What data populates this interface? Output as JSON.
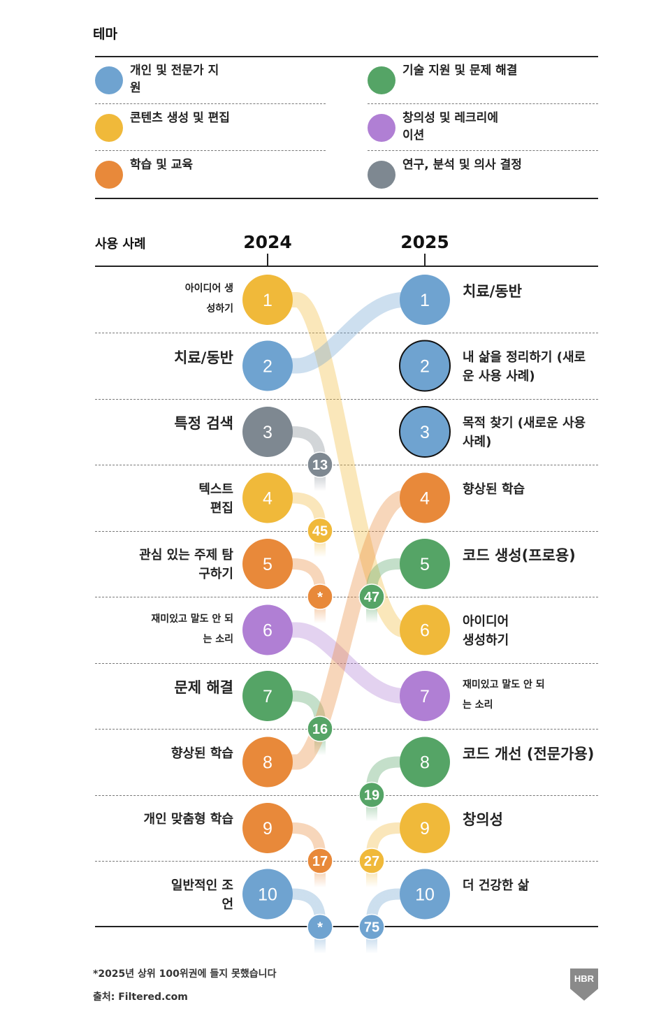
{
  "legend": {
    "title": "테마",
    "themes": [
      {
        "key": "personal",
        "label": "개인 및 전문가 지원",
        "color": "#6fa3d0"
      },
      {
        "key": "tech",
        "label": "기술 지원 및 문제 해결",
        "color": "#55a466"
      },
      {
        "key": "content",
        "label": "콘텐츠 생성 및 편집",
        "color": "#f0b93a"
      },
      {
        "key": "creative",
        "label": "창의성 및 레크리에이션",
        "color": "#b07fd4"
      },
      {
        "key": "learning",
        "label": "학습 및 교육",
        "color": "#e8893a"
      },
      {
        "key": "research",
        "label": "연구, 분석 및 의사 결정",
        "color": "#7e8891"
      }
    ]
  },
  "chart_data": {
    "type": "bump",
    "row_header": "사용 사례",
    "years": [
      "2024",
      "2025"
    ],
    "left": [
      {
        "rank": "1",
        "label": "아이디어 생성하기",
        "theme": "content",
        "rank_2025": "6"
      },
      {
        "rank": "2",
        "label": "치료/동반",
        "theme": "personal",
        "rank_2025": "1"
      },
      {
        "rank": "3",
        "label": "특정 검색",
        "theme": "research",
        "rank_2025": "13"
      },
      {
        "rank": "4",
        "label": "텍스트 편집",
        "theme": "content",
        "rank_2025": "45"
      },
      {
        "rank": "5",
        "label": "관심 있는 주제 탐구하기",
        "theme": "learning",
        "rank_2025": "*"
      },
      {
        "rank": "6",
        "label": "재미있고 말도 안 되는 소리",
        "theme": "creative",
        "rank_2025": "7"
      },
      {
        "rank": "7",
        "label": "문제 해결",
        "theme": "tech",
        "rank_2025": "16"
      },
      {
        "rank": "8",
        "label": "향상된 학습",
        "theme": "learning",
        "rank_2025": "4"
      },
      {
        "rank": "9",
        "label": "개인 맞춤형 학습",
        "theme": "learning",
        "rank_2025": "17"
      },
      {
        "rank": "10",
        "label": "일반적인 조언",
        "theme": "personal",
        "rank_2025": "*"
      }
    ],
    "right": [
      {
        "rank": "1",
        "label": "치료/동반",
        "theme": "personal",
        "rank_2024": "2"
      },
      {
        "rank": "2",
        "label": "내 삶을 정리하기 (새로운 사용 사례)",
        "theme": "personal",
        "rank_2024": "new"
      },
      {
        "rank": "3",
        "label": "목적 찾기 (새로운 사용 사례)",
        "theme": "personal",
        "rank_2024": "new"
      },
      {
        "rank": "4",
        "label": "향상된 학습",
        "theme": "learning",
        "rank_2024": "8"
      },
      {
        "rank": "5",
        "label": "코드 생성(프로용)",
        "theme": "tech",
        "rank_2024": "47"
      },
      {
        "rank": "6",
        "label": "아이디어 생성하기",
        "theme": "content",
        "rank_2024": "1"
      },
      {
        "rank": "7",
        "label": "재미있고 말도 안 되는 소리",
        "theme": "creative",
        "rank_2024": "6"
      },
      {
        "rank": "8",
        "label": "코드 개선 (전문가용)",
        "theme": "tech",
        "rank_2024": "19"
      },
      {
        "rank": "9",
        "label": "창의성",
        "theme": "content",
        "rank_2024": "27"
      },
      {
        "rank": "10",
        "label": "더 건강한 삶",
        "theme": "personal",
        "rank_2024": "75"
      }
    ]
  },
  "footer": {
    "note": "*2025년 상위 100위권에 들지 못했습니다",
    "source": "출처: Filtered.com",
    "logo": "HBR"
  }
}
